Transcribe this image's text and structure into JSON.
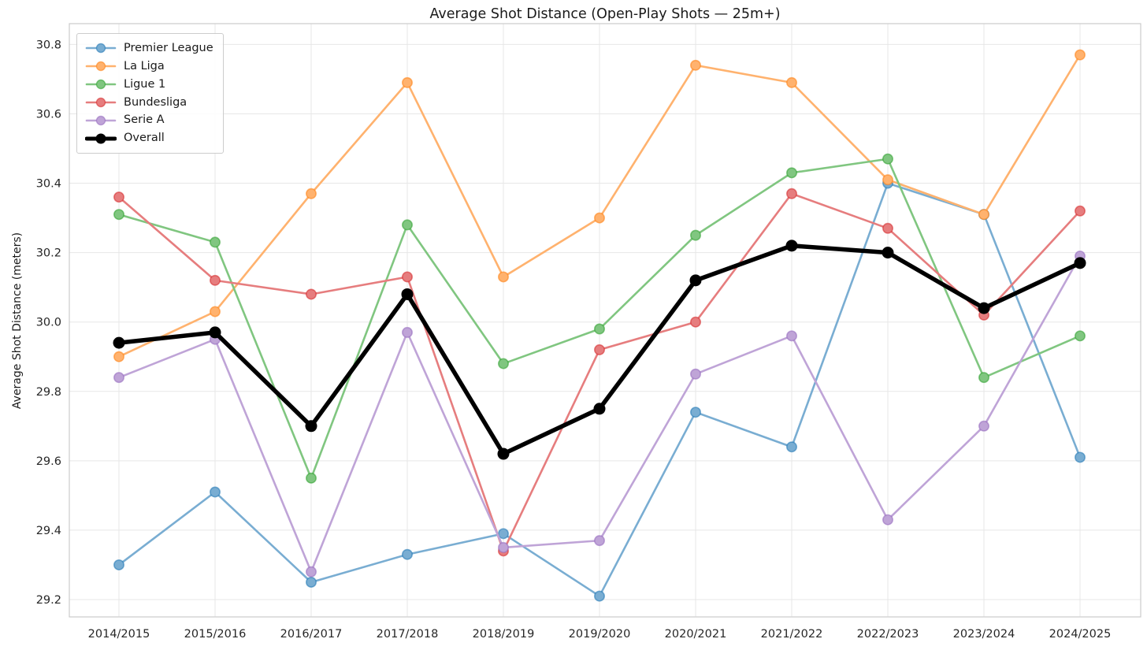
{
  "chart_data": {
    "type": "line",
    "title": "Average Shot Distance (Open-Play Shots — 25m+)",
    "ylabel": "Average Shot Distance (meters)",
    "xlabel": "",
    "categories": [
      "2014/2015",
      "2015/2016",
      "2016/2017",
      "2017/2018",
      "2018/2019",
      "2019/2020",
      "2020/2021",
      "2021/2022",
      "2022/2023",
      "2023/2024",
      "2024/2025"
    ],
    "yticks": [
      "29.2",
      "29.4",
      "29.6",
      "29.8",
      "30.0",
      "30.2",
      "30.4",
      "30.6",
      "30.8"
    ],
    "ylim": [
      29.15,
      30.86
    ],
    "grid": true,
    "legend_position": "upper-left",
    "colors": {
      "premier_league": "#79ADD2",
      "la_liga": "#FFB26E",
      "ligue_1": "#80C680",
      "bundesliga": "#E67D7E",
      "serie_a": "#BFA4D7",
      "overall": "#000000",
      "grid_line": "#e7e7e7",
      "spine": "#cccccc",
      "tick_text": "#262626"
    },
    "series": [
      {
        "name": "Premier League",
        "color": "#79ADD2",
        "edge": "#1f77b4",
        "emphasis": false,
        "values": [
          29.3,
          29.51,
          29.25,
          29.33,
          29.39,
          29.21,
          29.74,
          29.64,
          30.4,
          30.31,
          29.61
        ]
      },
      {
        "name": "La Liga",
        "color": "#FFB26E",
        "edge": "#ff7f0e",
        "emphasis": false,
        "values": [
          29.9,
          30.03,
          30.37,
          30.69,
          30.13,
          30.3,
          30.74,
          30.69,
          30.41,
          30.31,
          30.77
        ]
      },
      {
        "name": "Ligue 1",
        "color": "#80C680",
        "edge": "#2ca02c",
        "emphasis": false,
        "values": [
          30.31,
          30.23,
          29.55,
          30.28,
          29.88,
          29.98,
          30.25,
          30.43,
          30.47,
          29.84,
          29.96
        ]
      },
      {
        "name": "Bundesliga",
        "color": "#E67D7E",
        "edge": "#d62728",
        "emphasis": false,
        "values": [
          30.36,
          30.12,
          30.08,
          30.13,
          29.34,
          29.92,
          30.0,
          30.37,
          30.27,
          30.02,
          30.32
        ]
      },
      {
        "name": "Serie A",
        "color": "#BFA4D7",
        "edge": "#9467bd",
        "emphasis": false,
        "values": [
          29.84,
          29.95,
          29.28,
          29.97,
          29.35,
          29.37,
          29.85,
          29.96,
          29.43,
          29.7,
          30.19
        ]
      },
      {
        "name": "Overall",
        "color": "#000000",
        "edge": "#000000",
        "emphasis": true,
        "values": [
          29.94,
          29.97,
          29.7,
          30.08,
          29.62,
          29.75,
          30.12,
          30.22,
          30.2,
          30.04,
          30.17
        ]
      }
    ]
  }
}
